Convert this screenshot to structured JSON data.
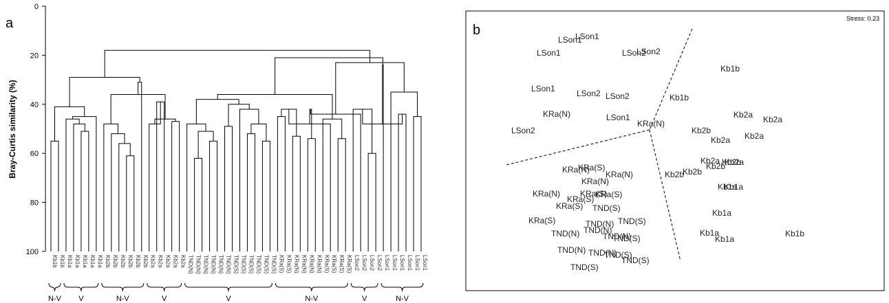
{
  "chart_data": [
    {
      "panel": "a",
      "type": "dendrogram",
      "ylabel": "Bray-Curtis similarity (%)",
      "ylim": [
        0,
        100
      ],
      "y_ticks": [
        "0",
        "20",
        "40",
        "60",
        "80",
        "100"
      ],
      "leaves": [
        "Kb1b",
        "Kb1b",
        "Kb1a",
        "Kb1a",
        "Kb1a",
        "Kb1a",
        "Kb1a",
        "Kb2b",
        "Kb2b",
        "Kb2b",
        "Kb2b",
        "Kb2b",
        "Kb2b",
        "Kb2a",
        "Kb2a",
        "Kb2a",
        "Kb2a",
        "Kb2a",
        "TND(N)",
        "TND(N)",
        "TND(N)",
        "TND(N)",
        "TND(N)",
        "TND(N)",
        "TND(S)",
        "TND(S)",
        "TND(S)",
        "TND(S)",
        "TND(S)",
        "TND(S)",
        "KRa(S)",
        "KRa(S)",
        "KRa(N)",
        "KRa(N)",
        "KRa(N)",
        "KRa(N)",
        "KRa(S)",
        "KRa(S)",
        "KRa(S)",
        "KRa(S)",
        "LSon2",
        "LSon2",
        "LSon2",
        "LSon2",
        "LSon1",
        "LSon1",
        "LSon1",
        "LSon1",
        "LSon1",
        "LSon1"
      ],
      "merges": [
        {
          "a": 0,
          "b": 1,
          "h": 55
        },
        {
          "a": 4,
          "b": 5,
          "h": 51
        },
        {
          "a": 3,
          "b": "m1",
          "h": 48
        },
        {
          "a": 2,
          "b": "m2",
          "h": 46
        },
        {
          "a": "m3",
          "b": 6,
          "h": 45
        },
        {
          "a": "m0",
          "b": "m4",
          "h": 41
        },
        {
          "a": 10,
          "b": 11,
          "h": 61
        },
        {
          "a": 9,
          "b": "m6",
          "h": 56
        },
        {
          "a": 8,
          "b": "m7",
          "h": 52
        },
        {
          "a": 7,
          "b": "m8",
          "h": 48
        },
        {
          "a": 14,
          "b": 15,
          "h": 39
        },
        {
          "a": 13,
          "b": "m10",
          "h": 48
        },
        {
          "a": 16,
          "b": 17,
          "h": 47
        },
        {
          "a": "m11",
          "b": "m12",
          "h": 46
        },
        {
          "a": "m9",
          "b": "m13",
          "h": 36
        },
        {
          "a": 12,
          "b": "m14",
          "h": 31
        },
        {
          "a": "m15",
          "b": "m5",
          "h": 29
        },
        {
          "a": 19,
          "b": 20,
          "h": 62
        },
        {
          "a": 21,
          "b": 22,
          "h": 55
        },
        {
          "a": "m17",
          "b": "m18",
          "h": 51
        },
        {
          "a": 18,
          "b": "m19",
          "h": 48
        },
        {
          "a": 23,
          "b": 24,
          "h": 49
        },
        {
          "a": 26,
          "b": 27,
          "h": 52
        },
        {
          "a": 28,
          "b": 29,
          "h": 55
        },
        {
          "a": "m22",
          "b": "m23",
          "h": 48
        },
        {
          "a": 25,
          "b": "m24",
          "h": 42
        },
        {
          "a": "m21",
          "b": "m25",
          "h": 40
        },
        {
          "a": "m20",
          "b": "m26",
          "h": 38
        },
        {
          "a": 30,
          "b": 31,
          "h": 45
        },
        {
          "a": 32,
          "b": 33,
          "h": 53
        },
        {
          "a": 34,
          "b": 35,
          "h": 54
        },
        {
          "a": "m28",
          "b": "m29",
          "h": 42
        },
        {
          "a": 38,
          "b": 39,
          "h": 54
        },
        {
          "a": 37,
          "b": "m31",
          "h": 48
        },
        {
          "a": 36,
          "b": "m32",
          "h": 46
        },
        {
          "a": "m30",
          "b": "m33",
          "h": 42
        },
        {
          "a": "m27",
          "b": "m34",
          "h": 36
        },
        {
          "a": "m35",
          "b": "m28b",
          "h": 33
        },
        {
          "a": 42,
          "b": 43,
          "h": 60
        },
        {
          "a": 41,
          "b": "m37",
          "h": 44
        },
        {
          "a": 40,
          "b": "m38",
          "h": 42
        },
        {
          "a": 46,
          "b": 47,
          "h": 44
        },
        {
          "a": 48,
          "b": 49,
          "h": 45
        },
        {
          "a": "m40",
          "b": "m41",
          "h": 48
        },
        {
          "a": 45,
          "b": "m42",
          "h": 35
        },
        {
          "a": 44,
          "b": "m43",
          "h": 24
        },
        {
          "a": "m39",
          "b": "m44",
          "h": 23
        },
        {
          "a": "m36",
          "b": "m45",
          "h": 21
        },
        {
          "a": "m16",
          "b": "m46",
          "h": 18
        }
      ],
      "groups": [
        {
          "label": "N-V",
          "from": 0,
          "to": 1
        },
        {
          "label": "V",
          "from": 2,
          "to": 6
        },
        {
          "label": "N-V",
          "from": 7,
          "to": 12
        },
        {
          "label": "V",
          "from": 13,
          "to": 17
        },
        {
          "label": "V",
          "from": 18,
          "to": 29
        },
        {
          "label": "N-V",
          "from": 30,
          "to": 39
        },
        {
          "label": "V",
          "from": 40,
          "to": 43
        },
        {
          "label": "N-V",
          "from": 44,
          "to": 49
        }
      ]
    },
    {
      "panel": "b",
      "type": "scatter",
      "stress": "Stress: 0.23",
      "points": [
        {
          "label": "LSon1",
          "x": 836,
          "y": 57
        },
        {
          "label": "LSon1",
          "x": 811,
          "y": 62
        },
        {
          "label": "LSon1",
          "x": 780,
          "y": 81
        },
        {
          "label": "LSon2",
          "x": 904,
          "y": 81
        },
        {
          "label": "LSon2",
          "x": 925,
          "y": 79
        },
        {
          "label": "LSon1",
          "x": 772,
          "y": 133
        },
        {
          "label": "LSon2",
          "x": 838,
          "y": 140
        },
        {
          "label": "LSon2",
          "x": 880,
          "y": 144
        },
        {
          "label": "KRa(N)",
          "x": 789,
          "y": 170
        },
        {
          "label": "LSon1",
          "x": 881,
          "y": 175
        },
        {
          "label": "KRa(N)",
          "x": 926,
          "y": 184
        },
        {
          "label": "LSon2",
          "x": 743,
          "y": 194
        },
        {
          "label": "Kb1b",
          "x": 1047,
          "y": 104
        },
        {
          "label": "Kb1b",
          "x": 973,
          "y": 146
        },
        {
          "label": "Kb2a",
          "x": 1066,
          "y": 171
        },
        {
          "label": "Kb2a",
          "x": 1109,
          "y": 178
        },
        {
          "label": "Kb2b",
          "x": 1005,
          "y": 194
        },
        {
          "label": "Kb2a",
          "x": 1033,
          "y": 208
        },
        {
          "label": "Kb2a",
          "x": 1082,
          "y": 202
        },
        {
          "label": "Kb2a",
          "x": 1018,
          "y": 238
        },
        {
          "label": "Kb2b",
          "x": 1049,
          "y": 240
        },
        {
          "label": "Kb2b",
          "x": 1026,
          "y": 246
        },
        {
          "label": "Kb2a",
          "x": 1053,
          "y": 240
        },
        {
          "label": "Kb2b",
          "x": 992,
          "y": 254
        },
        {
          "label": "Kb2b",
          "x": 966,
          "y": 258
        },
        {
          "label": "Kb1a",
          "x": 1043,
          "y": 276
        },
        {
          "label": "Kb1a",
          "x": 1052,
          "y": 276
        },
        {
          "label": "Kb1a",
          "x": 1035,
          "y": 314
        },
        {
          "label": "Kb1a",
          "x": 1017,
          "y": 343
        },
        {
          "label": "Kb1a",
          "x": 1039,
          "y": 352
        },
        {
          "label": "Kb1b",
          "x": 1141,
          "y": 344
        },
        {
          "label": "KRa(S)",
          "x": 840,
          "y": 248
        },
        {
          "label": "KRa(N)",
          "x": 817,
          "y": 251
        },
        {
          "label": "KRa(N)",
          "x": 880,
          "y": 258
        },
        {
          "label": "KRa(N)",
          "x": 845,
          "y": 268
        },
        {
          "label": "KRa(N)",
          "x": 774,
          "y": 286
        },
        {
          "label": "KRa(S)",
          "x": 843,
          "y": 286
        },
        {
          "label": "KRa(S)",
          "x": 865,
          "y": 287
        },
        {
          "label": "KRa(S)",
          "x": 824,
          "y": 294
        },
        {
          "label": "KRa(S)",
          "x": 808,
          "y": 304
        },
        {
          "label": "KRa(S)",
          "x": 768,
          "y": 325
        },
        {
          "label": "TND(S)",
          "x": 861,
          "y": 307
        },
        {
          "label": "TND(N)",
          "x": 851,
          "y": 330
        },
        {
          "label": "TND(S)",
          "x": 898,
          "y": 326
        },
        {
          "label": "TND(N)",
          "x": 848,
          "y": 339
        },
        {
          "label": "TND(N)",
          "x": 801,
          "y": 344
        },
        {
          "label": "TND(N)",
          "x": 876,
          "y": 348
        },
        {
          "label": "TND(S)",
          "x": 890,
          "y": 351
        },
        {
          "label": "TND(N)",
          "x": 810,
          "y": 368
        },
        {
          "label": "TND(N)",
          "x": 855,
          "y": 372
        },
        {
          "label": "TND(S)",
          "x": 878,
          "y": 375
        },
        {
          "label": "TND(S)",
          "x": 903,
          "y": 383
        },
        {
          "label": "TND(S)",
          "x": 829,
          "y": 393
        }
      ],
      "dividers": [
        {
          "x1": 1006,
          "y1": 42,
          "x2": 944,
          "y2": 189
        },
        {
          "x1": 944,
          "y1": 189,
          "x2": 736,
          "y2": 240
        },
        {
          "x1": 944,
          "y1": 189,
          "x2": 989,
          "y2": 380
        }
      ]
    }
  ],
  "labels": {
    "panel_a": "a",
    "panel_b": "b"
  }
}
